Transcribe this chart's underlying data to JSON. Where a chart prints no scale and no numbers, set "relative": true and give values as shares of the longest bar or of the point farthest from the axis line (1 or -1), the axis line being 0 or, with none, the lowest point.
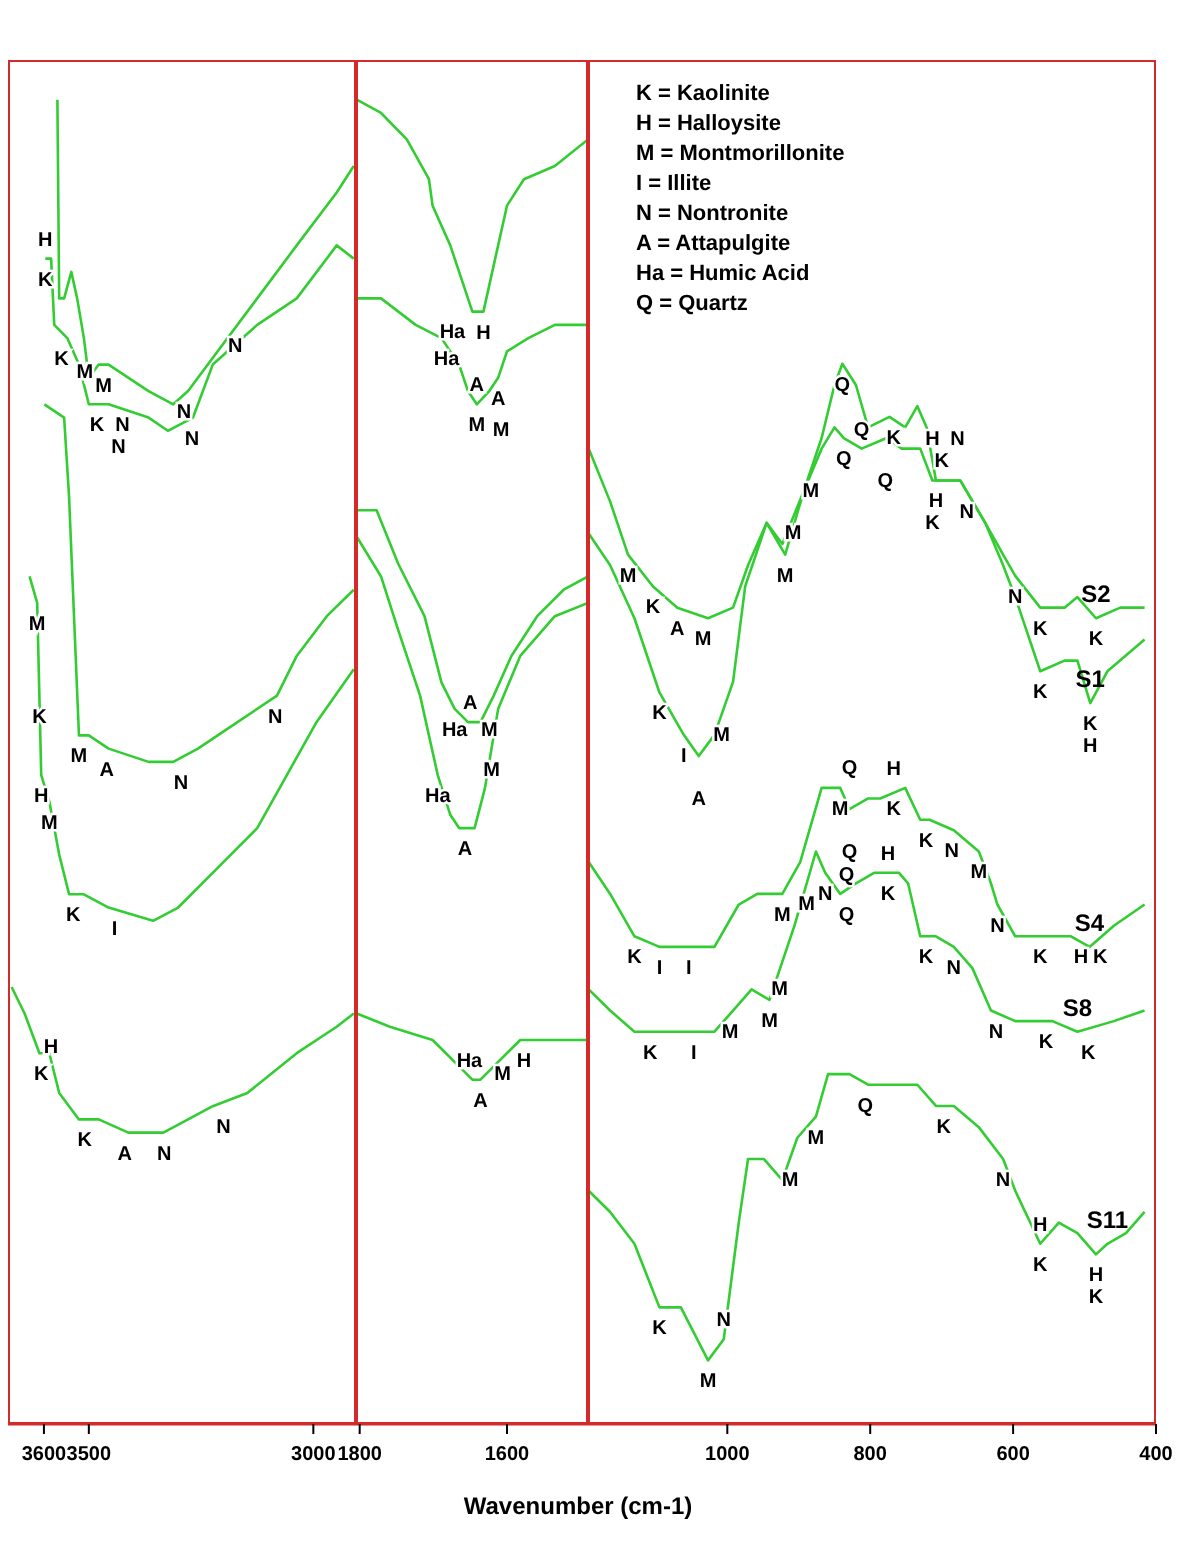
{
  "chart_data": [
    {
      "type": "line",
      "relative": true,
      "xlim": [
        3680,
        2905
      ],
      "xticks": [
        3600,
        3500,
        3000
      ],
      "series": [
        {
          "color": "#33cc33",
          "x": [
            3570,
            3566,
            3555,
            3539,
            3526,
            3511,
            3500,
            3478,
            3456,
            3367,
            3312,
            3279,
            3213,
            3125,
            3037,
            2948,
            2910
          ],
          "values": [
            1.0,
            0.85,
            0.85,
            0.87,
            0.85,
            0.82,
            0.79,
            0.8,
            0.8,
            0.78,
            0.77,
            0.78,
            0.81,
            0.85,
            0.89,
            0.93,
            0.95
          ]
        },
        {
          "color": "#33cc33",
          "x": [
            3597,
            3584,
            3577,
            3548,
            3522,
            3500,
            3456,
            3367,
            3324,
            3268,
            3224,
            3125,
            3037,
            2948,
            2910
          ],
          "values": [
            0.88,
            0.88,
            0.83,
            0.82,
            0.8,
            0.77,
            0.77,
            0.76,
            0.75,
            0.76,
            0.8,
            0.83,
            0.85,
            0.89,
            0.88
          ]
        },
        {
          "color": "#33cc33",
          "x": [
            3599,
            3555,
            3544,
            3522,
            3500,
            3456,
            3367,
            3312,
            3257,
            3169,
            3081,
            3037,
            2970,
            2910
          ],
          "values": [
            0.77,
            0.76,
            0.7,
            0.52,
            0.52,
            0.51,
            0.5,
            0.5,
            0.51,
            0.53,
            0.55,
            0.58,
            0.61,
            0.63
          ]
        },
        {
          "color": "#33cc33",
          "x": [
            3632,
            3615,
            3606,
            3588,
            3566,
            3544,
            3511,
            3456,
            3357,
            3301,
            3213,
            3125,
            3059,
            2993,
            2910
          ],
          "values": [
            0.64,
            0.62,
            0.49,
            0.47,
            0.43,
            0.4,
            0.4,
            0.39,
            0.38,
            0.39,
            0.42,
            0.45,
            0.49,
            0.53,
            0.57
          ]
        },
        {
          "color": "#33cc33",
          "x": [
            3672,
            3643,
            3610,
            3588,
            3566,
            3522,
            3478,
            3412,
            3334,
            3279,
            3224,
            3147,
            3037,
            2948,
            2910
          ],
          "values": [
            0.33,
            0.31,
            0.28,
            0.28,
            0.25,
            0.23,
            0.23,
            0.22,
            0.22,
            0.23,
            0.24,
            0.25,
            0.28,
            0.3,
            0.31
          ]
        }
      ],
      "annotations": [
        {
          "text": "K",
          "x": 3597,
          "y": 0.88
        },
        {
          "text": "H",
          "x": 3597,
          "y": 0.88
        },
        {
          "text": "M",
          "x": 3467,
          "y": 0.8
        },
        {
          "text": "N",
          "x": 3174,
          "y": 0.83
        },
        {
          "text": "K",
          "x": 3561,
          "y": 0.82
        },
        {
          "text": "K",
          "x": 3482,
          "y": 0.77
        },
        {
          "text": "N",
          "x": 3425,
          "y": 0.77
        },
        {
          "text": "N",
          "x": 3288,
          "y": 0.78
        },
        {
          "text": "M",
          "x": 3509,
          "y": 0.78
        },
        {
          "text": "N",
          "x": 3434,
          "y": 0.77
        },
        {
          "text": "N",
          "x": 3270,
          "y": 0.76
        },
        {
          "text": "M",
          "x": 3615,
          "y": 0.62
        },
        {
          "text": "M",
          "x": 3522,
          "y": 0.52
        },
        {
          "text": "A",
          "x": 3460,
          "y": 0.51
        },
        {
          "text": "N",
          "x": 3295,
          "y": 0.5
        },
        {
          "text": "N",
          "x": 3085,
          "y": 0.55
        },
        {
          "text": "K",
          "x": 3610,
          "y": 0.55
        },
        {
          "text": "H",
          "x": 3606,
          "y": 0.49
        },
        {
          "text": "M",
          "x": 3588,
          "y": 0.47
        },
        {
          "text": "K",
          "x": 3535,
          "y": 0.4
        },
        {
          "text": "I",
          "x": 3443,
          "y": 0.39
        },
        {
          "text": "K",
          "x": 3606,
          "y": 0.28
        },
        {
          "text": "H",
          "x": 3584,
          "y": 0.27
        },
        {
          "text": "K",
          "x": 3509,
          "y": 0.23
        },
        {
          "text": "A",
          "x": 3420,
          "y": 0.22
        },
        {
          "text": "N",
          "x": 3332,
          "y": 0.22
        },
        {
          "text": "N",
          "x": 3200,
          "y": 0.24
        }
      ]
    },
    {
      "type": "line",
      "relative": true,
      "xlim": [
        1805,
        1490
      ],
      "xticks": [
        1800,
        1600
      ],
      "series": [
        {
          "color": "#33cc33",
          "x": [
            1804,
            1771,
            1736,
            1706,
            1701,
            1677,
            1659,
            1647,
            1632,
            1624,
            1612,
            1600,
            1577,
            1535,
            1490
          ],
          "values": [
            1.0,
            0.99,
            0.97,
            0.94,
            0.92,
            0.89,
            0.86,
            0.84,
            0.84,
            0.86,
            0.89,
            0.92,
            0.94,
            0.95,
            0.97
          ]
        },
        {
          "color": "#33cc33",
          "x": [
            1804,
            1771,
            1724,
            1689,
            1665,
            1653,
            1641,
            1624,
            1612,
            1600,
            1571,
            1535,
            1490
          ],
          "values": [
            0.85,
            0.85,
            0.83,
            0.82,
            0.8,
            0.78,
            0.77,
            0.78,
            0.79,
            0.81,
            0.82,
            0.83,
            0.83
          ]
        },
        {
          "color": "#33cc33",
          "x": [
            1804,
            1777,
            1748,
            1712,
            1689,
            1671,
            1653,
            1636,
            1618,
            1594,
            1559,
            1523,
            1490
          ],
          "values": [
            0.69,
            0.69,
            0.65,
            0.61,
            0.56,
            0.54,
            0.53,
            0.53,
            0.55,
            0.58,
            0.61,
            0.63,
            0.64
          ]
        },
        {
          "color": "#33cc33",
          "x": [
            1804,
            1771,
            1748,
            1718,
            1694,
            1677,
            1665,
            1644,
            1630,
            1612,
            1582,
            1535,
            1490
          ],
          "values": [
            0.67,
            0.64,
            0.6,
            0.55,
            0.49,
            0.46,
            0.45,
            0.45,
            0.48,
            0.54,
            0.58,
            0.61,
            0.62
          ]
        },
        {
          "color": "#33cc33",
          "x": [
            1804,
            1759,
            1701,
            1665,
            1647,
            1636,
            1618,
            1582,
            1512,
            1490
          ],
          "values": [
            0.31,
            0.3,
            0.29,
            0.27,
            0.26,
            0.26,
            0.27,
            0.29,
            0.29,
            0.29
          ]
        }
      ],
      "annotations": [
        {
          "text": "H",
          "x": 1632,
          "y": 0.84
        },
        {
          "text": "Ha",
          "x": 1682,
          "y": 0.82
        },
        {
          "text": "A",
          "x": 1612,
          "y": 0.79
        },
        {
          "text": "M",
          "x": 1641,
          "y": 0.77
        },
        {
          "text": "Ha",
          "x": 1674,
          "y": 0.81
        },
        {
          "text": "M",
          "x": 1608,
          "y": 0.8
        },
        {
          "text": "A",
          "x": 1641,
          "y": 0.77
        },
        {
          "text": "Ha",
          "x": 1671,
          "y": 0.54
        },
        {
          "text": "M",
          "x": 1624,
          "y": 0.54
        },
        {
          "text": "A",
          "x": 1650,
          "y": 0.53
        },
        {
          "text": "Ha",
          "x": 1694,
          "y": 0.49
        },
        {
          "text": "A",
          "x": 1657,
          "y": 0.45
        },
        {
          "text": "M",
          "x": 1621,
          "y": 0.51
        },
        {
          "text": "A",
          "x": 1636,
          "y": 0.26
        },
        {
          "text": "H",
          "x": 1577,
          "y": 0.29
        },
        {
          "text": "Ha",
          "x": 1651,
          "y": 0.26
        },
        {
          "text": "M",
          "x": 1606,
          "y": 0.28
        }
      ]
    },
    {
      "type": "line",
      "relative": true,
      "xlim": [
        1195,
        400
      ],
      "xticks": [
        1000,
        800,
        600,
        400
      ],
      "xlabel": "Wavenumber (cm-1)",
      "series": [
        {
          "name": "S2",
          "color": "#33cc33",
          "x": [
            1194,
            1164,
            1139,
            1104,
            1070,
            1027,
            992,
            971,
            945,
            919,
            893,
            868,
            850,
            837,
            812,
            777,
            756,
            730,
            713,
            674,
            639,
            614,
            597,
            562,
            528,
            510,
            484,
            450,
            416
          ],
          "values": [
            0.92,
            0.87,
            0.82,
            0.79,
            0.77,
            0.76,
            0.77,
            0.81,
            0.85,
            0.82,
            0.88,
            0.92,
            0.94,
            0.93,
            0.92,
            0.93,
            0.92,
            0.92,
            0.89,
            0.89,
            0.85,
            0.82,
            0.8,
            0.77,
            0.77,
            0.78,
            0.76,
            0.77,
            0.77
          ]
        },
        {
          "name": "S1",
          "color": "#33cc33",
          "x": [
            1194,
            1164,
            1130,
            1095,
            1061,
            1040,
            1018,
            992,
            975,
            945,
            923,
            893,
            868,
            850,
            839,
            820,
            803,
            773,
            751,
            734,
            721,
            708,
            674,
            639,
            614,
            597,
            562,
            528,
            510,
            492,
            468,
            416
          ],
          "values": [
            0.84,
            0.81,
            0.76,
            0.69,
            0.65,
            0.63,
            0.65,
            0.7,
            0.79,
            0.85,
            0.83,
            0.88,
            0.93,
            0.98,
            1.0,
            0.98,
            0.94,
            0.95,
            0.94,
            0.96,
            0.94,
            0.89,
            0.89,
            0.85,
            0.81,
            0.78,
            0.71,
            0.72,
            0.72,
            0.68,
            0.71,
            0.74
          ]
        },
        {
          "name": "S4",
          "color": "#33cc33",
          "x": [
            1194,
            1164,
            1130,
            1095,
            1061,
            1018,
            984,
            958,
            923,
            898,
            868,
            842,
            829,
            803,
            786,
            751,
            730,
            717,
            683,
            648,
            631,
            622,
            597,
            562,
            519,
            493,
            459,
            416
          ],
          "values": [
            0.53,
            0.5,
            0.46,
            0.45,
            0.45,
            0.45,
            0.49,
            0.5,
            0.5,
            0.53,
            0.6,
            0.6,
            0.58,
            0.59,
            0.59,
            0.6,
            0.57,
            0.57,
            0.56,
            0.54,
            0.51,
            0.49,
            0.46,
            0.46,
            0.46,
            0.45,
            0.47,
            0.49
          ]
        },
        {
          "name": "S8",
          "color": "#33cc33",
          "x": [
            1194,
            1164,
            1130,
            1070,
            1018,
            992,
            966,
            941,
            906,
            876,
            863,
            842,
            820,
            794,
            760,
            747,
            730,
            708,
            683,
            657,
            631,
            597,
            545,
            510,
            459,
            416
          ],
          "values": [
            0.41,
            0.39,
            0.37,
            0.37,
            0.37,
            0.39,
            0.41,
            0.4,
            0.47,
            0.54,
            0.52,
            0.5,
            0.51,
            0.52,
            0.52,
            0.51,
            0.46,
            0.46,
            0.45,
            0.43,
            0.39,
            0.38,
            0.38,
            0.37,
            0.38,
            0.39
          ]
        },
        {
          "name": "S11",
          "color": "#33cc33",
          "x": [
            1194,
            1164,
            1130,
            1095,
            1065,
            1027,
            1005,
            984,
            971,
            949,
            923,
            902,
            876,
            859,
            829,
            803,
            769,
            734,
            708,
            683,
            648,
            614,
            597,
            562,
            536,
            510,
            484,
            468,
            442,
            416
          ],
          "values": [
            0.22,
            0.2,
            0.17,
            0.11,
            0.11,
            0.06,
            0.08,
            0.19,
            0.25,
            0.25,
            0.23,
            0.27,
            0.29,
            0.33,
            0.33,
            0.32,
            0.32,
            0.32,
            0.3,
            0.3,
            0.28,
            0.25,
            0.22,
            0.17,
            0.19,
            0.18,
            0.16,
            0.17,
            0.18,
            0.2
          ]
        }
      ],
      "annotations": [
        "K = Kaolinite",
        "H = Halloysite",
        "M = Montmorillonite",
        "I = Illite",
        "N = Nontronite",
        "A = Attapulgite",
        "Ha = Humic Acid",
        "Q = Quartz",
        {
          "text": "Q",
          "x": 839,
          "y": 1.0
        },
        {
          "text": "Q",
          "x": 837,
          "y": 0.93
        },
        {
          "text": "M",
          "x": 908,
          "y": 0.86
        },
        {
          "text": "K",
          "x": 767,
          "y": 0.95
        },
        {
          "text": "H",
          "x": 708,
          "y": 0.89
        },
        {
          "text": "K",
          "x": 700,
          "y": 0.89
        },
        {
          "text": "N",
          "x": 665,
          "y": 0.88
        },
        {
          "text": "Q",
          "x": 812,
          "y": 0.92
        },
        {
          "text": "Q",
          "x": 779,
          "y": 0.93
        },
        {
          "text": "M",
          "x": 883,
          "y": 0.9
        },
        {
          "text": "M",
          "x": 919,
          "y": 0.82
        },
        {
          "text": "K",
          "x": 713,
          "y": 0.89
        },
        {
          "text": "H",
          "x": 713,
          "y": 0.89
        },
        {
          "text": "N",
          "x": 678,
          "y": 0.89
        },
        {
          "text": "N",
          "x": 597,
          "y": 0.8
        },
        {
          "text": "K",
          "x": 562,
          "y": 0.77
        },
        {
          "text": "K",
          "x": 484,
          "y": 0.76
        },
        {
          "text": "K",
          "x": 562,
          "y": 0.71
        },
        {
          "text": "K",
          "x": 492,
          "y": 0.68
        },
        {
          "text": "H",
          "x": 492,
          "y": 0.68
        },
        {
          "text": "M",
          "x": 1139,
          "y": 0.82
        },
        {
          "text": "K",
          "x": 1104,
          "y": 0.79
        },
        {
          "text": "A",
          "x": 1070,
          "y": 0.77
        },
        {
          "text": "M",
          "x": 1034,
          "y": 0.76
        },
        {
          "text": "K",
          "x": 1095,
          "y": 0.69
        },
        {
          "text": "I",
          "x": 1061,
          "y": 0.65
        },
        {
          "text": "A",
          "x": 1040,
          "y": 0.63
        },
        {
          "text": "M",
          "x": 1008,
          "y": 0.67
        },
        {
          "text": "M",
          "x": 923,
          "y": 0.5
        },
        {
          "text": "M",
          "x": 842,
          "y": 0.6
        },
        {
          "text": "Q",
          "x": 829,
          "y": 0.58
        },
        {
          "text": "Q",
          "x": 829,
          "y": 0.58
        },
        {
          "text": "K",
          "x": 767,
          "y": 0.6
        },
        {
          "text": "H",
          "x": 767,
          "y": 0.6
        },
        {
          "text": "K",
          "x": 722,
          "y": 0.57
        },
        {
          "text": "N",
          "x": 686,
          "y": 0.56
        },
        {
          "text": "M",
          "x": 648,
          "y": 0.54
        },
        {
          "text": "M",
          "x": 927,
          "y": 0.43
        },
        {
          "text": "N",
          "x": 863,
          "y": 0.52
        },
        {
          "text": "Q",
          "x": 833,
          "y": 0.5
        },
        {
          "text": "Q",
          "x": 833,
          "y": 0.5
        },
        {
          "text": "K",
          "x": 775,
          "y": 0.52
        },
        {
          "text": "H",
          "x": 775,
          "y": 0.52
        },
        {
          "text": "K",
          "x": 1130,
          "y": 0.46
        },
        {
          "text": "I",
          "x": 1095,
          "y": 0.45
        },
        {
          "text": "I",
          "x": 1054,
          "y": 0.45
        },
        {
          "text": "M",
          "x": 889,
          "y": 0.51
        },
        {
          "text": "K",
          "x": 722,
          "y": 0.46
        },
        {
          "text": "N",
          "x": 683,
          "y": 0.45
        },
        {
          "text": "N",
          "x": 622,
          "y": 0.49
        },
        {
          "text": "K",
          "x": 562,
          "y": 0.46
        },
        {
          "text": "H",
          "x": 505,
          "y": 0.46
        },
        {
          "text": "K",
          "x": 478,
          "y": 0.46
        },
        {
          "text": "M",
          "x": 941,
          "y": 0.4
        },
        {
          "text": "K",
          "x": 1108,
          "y": 0.37
        },
        {
          "text": "I",
          "x": 1047,
          "y": 0.37
        },
        {
          "text": "M",
          "x": 996,
          "y": 0.39
        },
        {
          "text": "N",
          "x": 624,
          "y": 0.39
        },
        {
          "text": "K",
          "x": 554,
          "y": 0.38
        },
        {
          "text": "K",
          "x": 495,
          "y": 0.37
        },
        {
          "text": "Q",
          "x": 807,
          "y": 0.32
        },
        {
          "text": "K",
          "x": 697,
          "y": 0.3
        },
        {
          "text": "M",
          "x": 876,
          "y": 0.29
        },
        {
          "text": "M",
          "x": 912,
          "y": 0.25
        },
        {
          "text": "N",
          "x": 614,
          "y": 0.25
        },
        {
          "text": "K",
          "x": 1095,
          "y": 0.11
        },
        {
          "text": "M",
          "x": 1027,
          "y": 0.06
        },
        {
          "text": "N",
          "x": 1005,
          "y": 0.08
        },
        {
          "text": "K",
          "x": 562,
          "y": 0.17
        },
        {
          "text": "H",
          "x": 562,
          "y": 0.17
        },
        {
          "text": "H",
          "x": 484,
          "y": 0.16
        },
        {
          "text": "K",
          "x": 484,
          "y": 0.16
        }
      ]
    }
  ]
}
